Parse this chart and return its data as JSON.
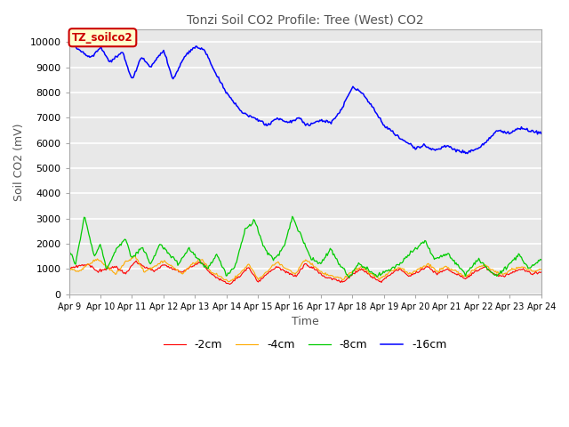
{
  "title": "Tonzi Soil CO2 Profile: Tree (West) CO2",
  "xlabel": "Time",
  "ylabel": "Soil CO2 (mV)",
  "ylim": [
    0,
    10500
  ],
  "yticks": [
    0,
    1000,
    2000,
    3000,
    4000,
    5000,
    6000,
    7000,
    8000,
    9000,
    10000
  ],
  "legend_labels": [
    "-2cm",
    "-4cm",
    "-8cm",
    "-16cm"
  ],
  "legend_colors": [
    "#ff0000",
    "#ffaa00",
    "#00cc00",
    "#0000ff"
  ],
  "annotation_text": "TZ_soilco2",
  "annotation_color": "#cc0000",
  "annotation_bg": "#ffffcc",
  "bg_color": "#e8e8e8",
  "n_points": 500,
  "x_start": 9,
  "x_end": 24,
  "xtick_positions": [
    9,
    10,
    11,
    12,
    13,
    14,
    15,
    16,
    17,
    18,
    19,
    20,
    21,
    22,
    23,
    24
  ],
  "xtick_labels": [
    "Apr 9",
    "Apr 10",
    "Apr 11",
    "Apr 12",
    "Apr 13",
    "Apr 14",
    "Apr 15",
    "Apr 16",
    "Apr 17",
    "Apr 18",
    "Apr 19",
    "Apr 20",
    "Apr 21",
    "Apr 22",
    "Apr 23",
    "Apr 24"
  ],
  "title_color": "#555555",
  "axis_label_color": "#555555"
}
